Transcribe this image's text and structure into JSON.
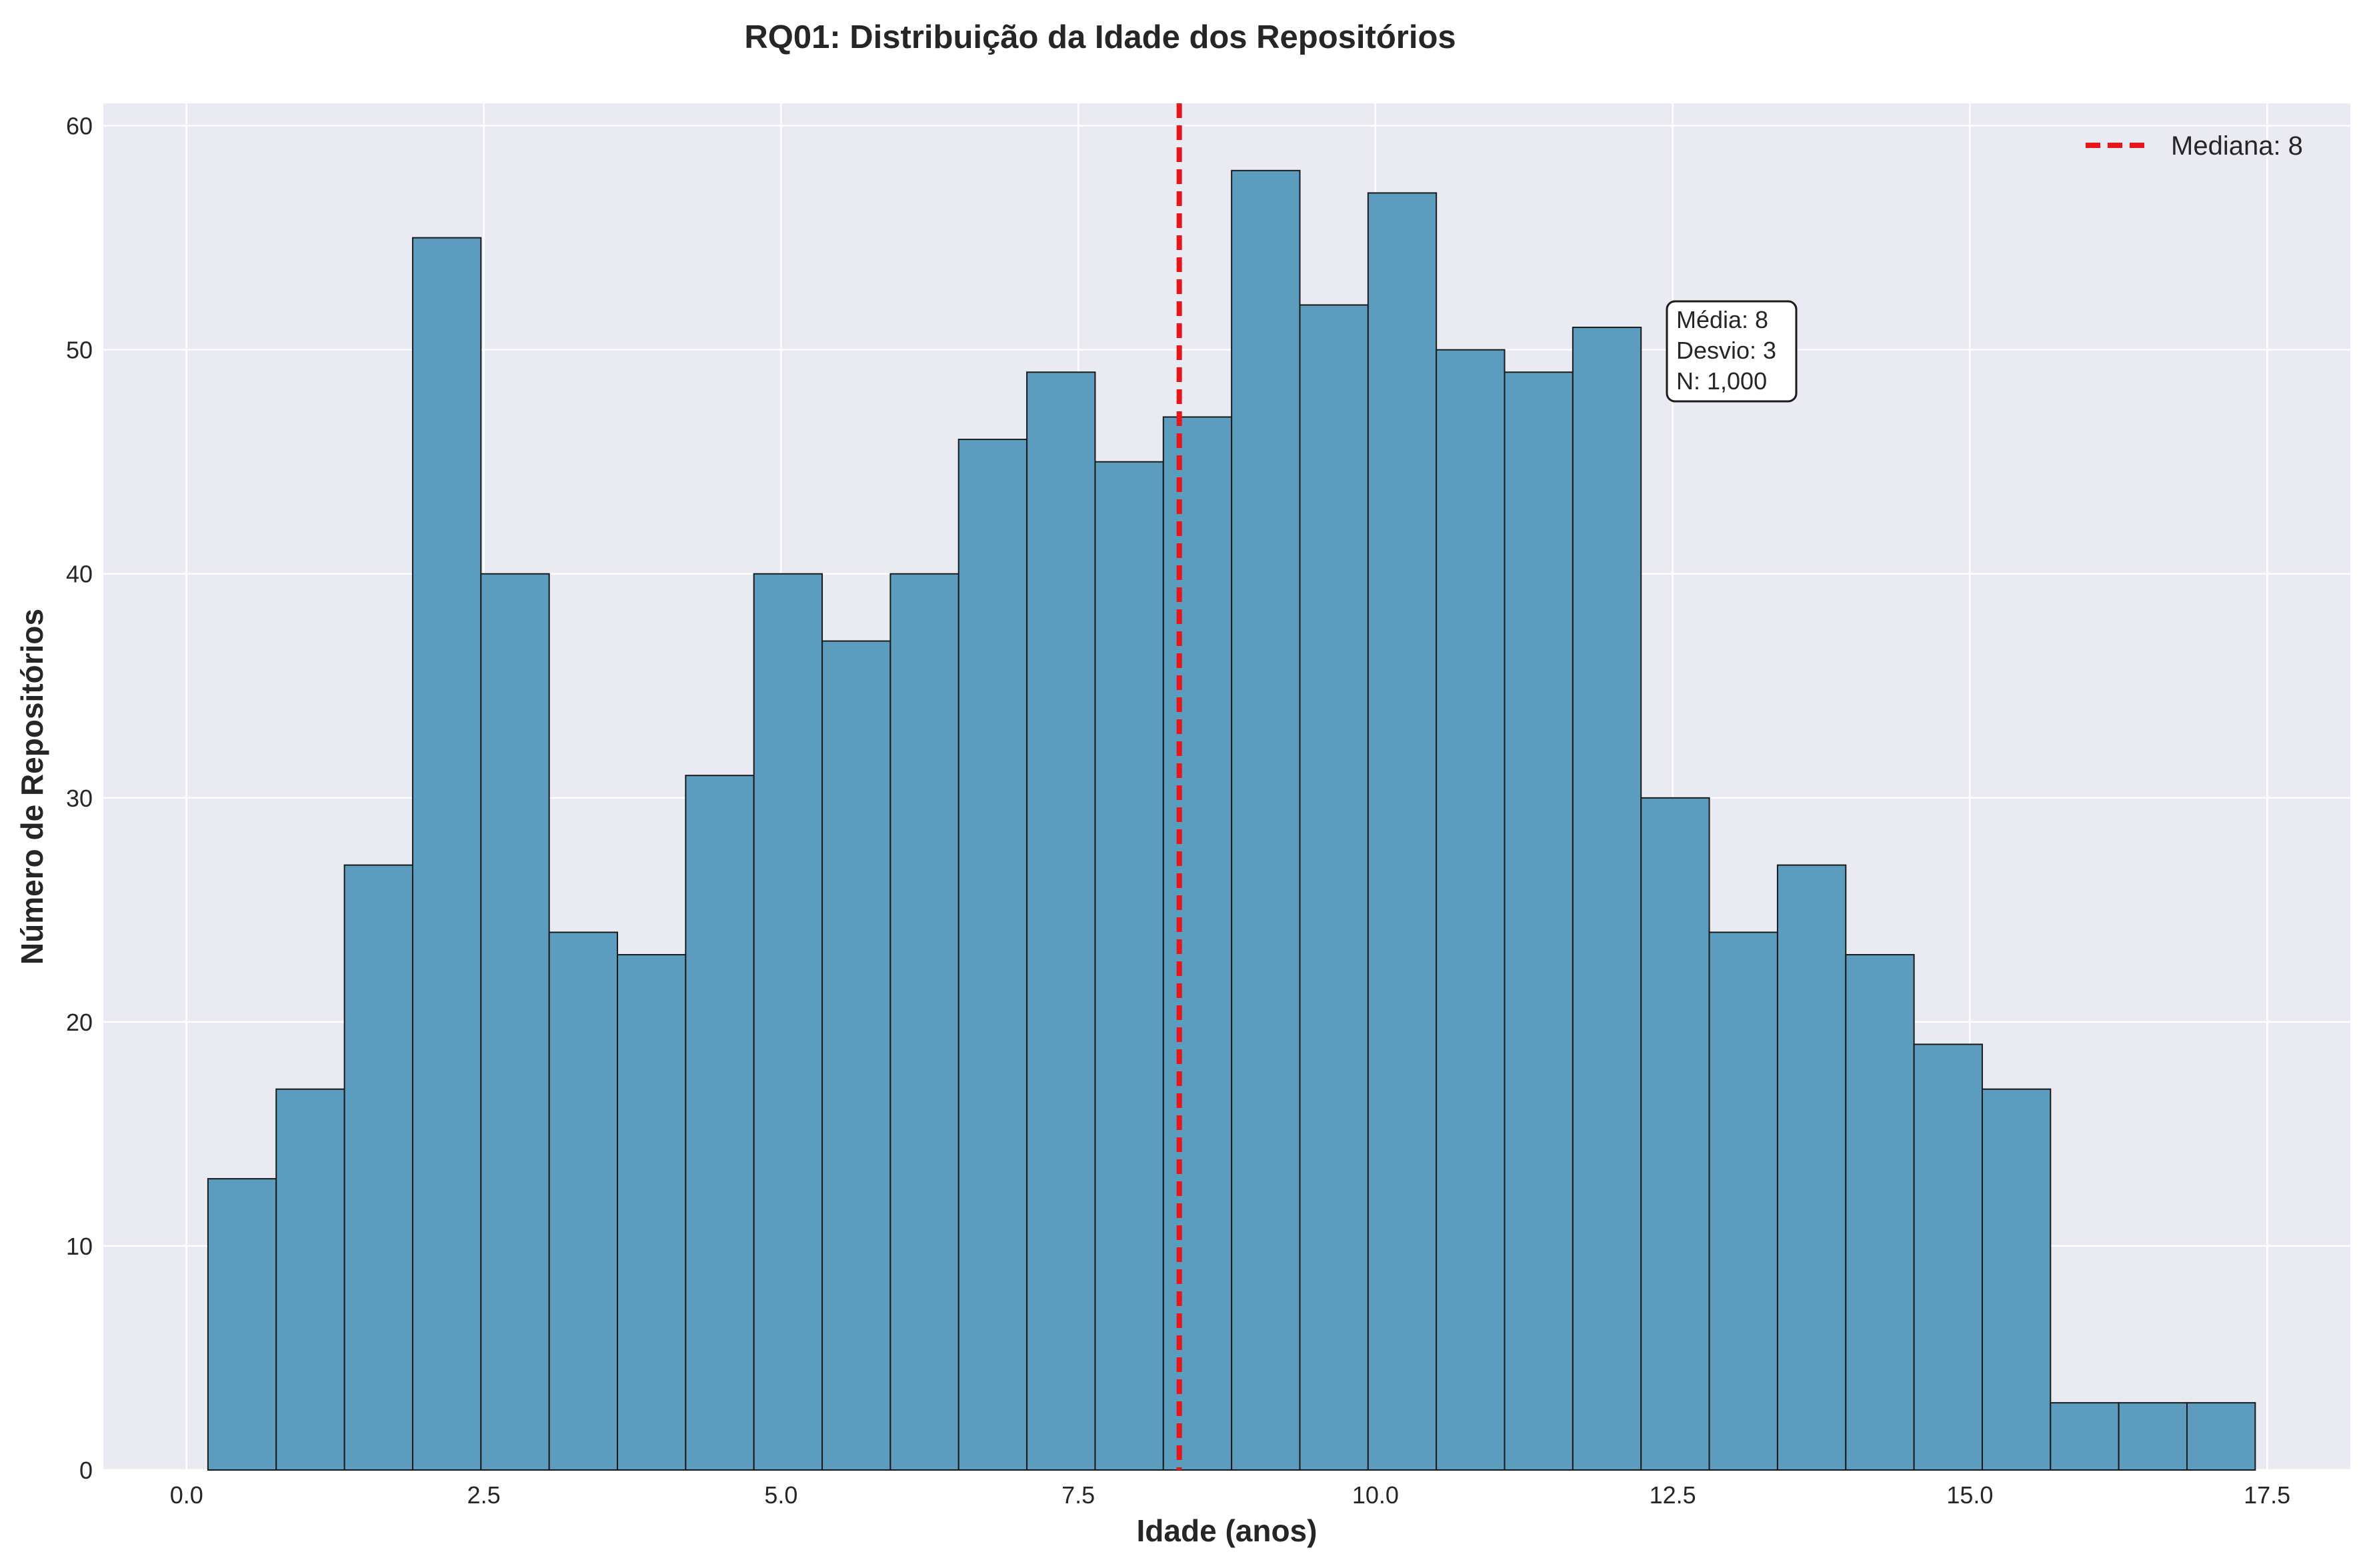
{
  "chart_data": {
    "type": "bar",
    "title": "RQ01: Distribuição da Idade dos Repositórios",
    "xlabel": "Idade (anos)",
    "ylabel": "Número de Repositórios",
    "xlim": [
      -0.7,
      18.2
    ],
    "ylim": [
      0,
      61
    ],
    "xticks": [
      0.0,
      2.5,
      5.0,
      7.5,
      10.0,
      12.5,
      15.0,
      17.5
    ],
    "xtick_labels": [
      "0.0",
      "2.5",
      "5.0",
      "7.5",
      "10.0",
      "12.5",
      "15.0",
      "17.5"
    ],
    "yticks": [
      0,
      10,
      20,
      30,
      40,
      50,
      60
    ],
    "ytick_labels": [
      "0",
      "10",
      "20",
      "30",
      "40",
      "50",
      "60"
    ],
    "bin_start": 0.18,
    "bin_width": 0.574,
    "values": [
      13,
      17,
      27,
      55,
      40,
      24,
      23,
      31,
      40,
      37,
      40,
      46,
      49,
      45,
      47,
      58,
      52,
      57,
      50,
      49,
      51,
      30,
      24,
      27,
      23,
      19,
      17,
      3,
      3,
      3
    ],
    "median_line": 8.35,
    "grid": true,
    "legend": {
      "position": "top-right",
      "label": "Mediana: 8"
    },
    "stats_box": [
      "Média: 8",
      "Desvio: 3",
      "N: 1,000"
    ],
    "colors": {
      "bar": "#5b9cbf",
      "bar_edge": "#1a1a1a",
      "median": "#e8161b",
      "plot_bg": "#eaeaf2",
      "grid": "#ffffff"
    }
  }
}
